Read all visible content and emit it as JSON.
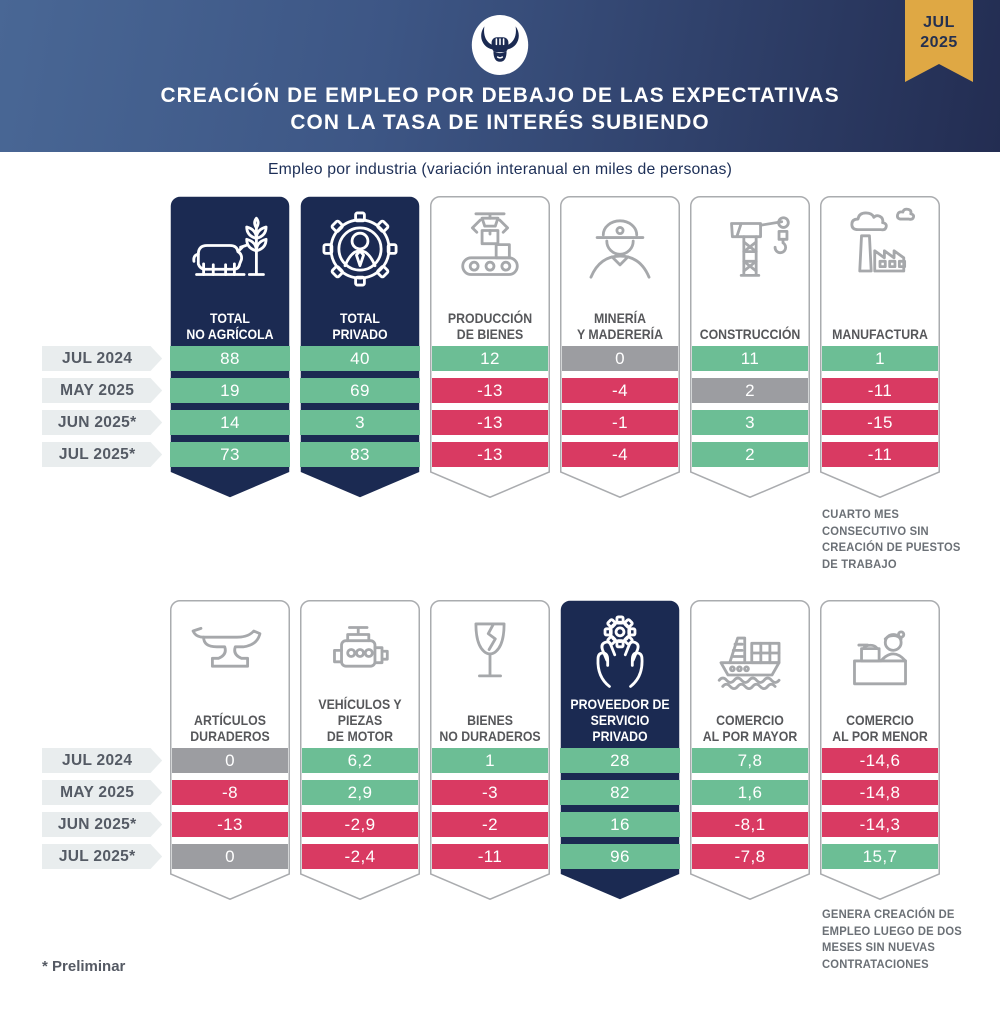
{
  "header": {
    "logo": "bull-horns-logo",
    "badge": {
      "month": "JUL",
      "year": "2025"
    },
    "title_line1": "CREACIÓN DE EMPLEO POR DEBAJO DE LAS EXPECTATIVAS",
    "title_line2": "CON LA TASA DE INTERÉS SUBIENDO"
  },
  "subtitle": "Empleo por industria (variación interanual en miles de personas)",
  "footnote": "* Preliminar",
  "colors": {
    "positive_green": "#6cbe95",
    "negative_red": "#d93a62",
    "neutral_gray": "#9c9da1",
    "navy": "#1b2a52",
    "gold_badge": "#dfa844",
    "header_left": "#496795",
    "header_right": "#232d52"
  },
  "chart_data": {
    "type": "table",
    "title": "CREACIÓN DE EMPLEO POR DEBAJO DE LAS EXPECTATIVAS CON LA TASA DE INTERÉS SUBIENDO",
    "subtitle": "Empleo por industria (variación interanual en miles de personas)",
    "unit": "miles de personas, variación interanual",
    "rows": [
      "JUL 2024",
      "MAY 2025",
      "JUN 2025*",
      "JUL 2025*"
    ],
    "value_color_legend": {
      "g": "positivo (verde)",
      "r": "negativo (rojo)",
      "n": "neutro (gris)"
    },
    "bands": [
      {
        "columns": [
          {
            "label": [
              "TOTAL",
              "NO AGRÍCOLA"
            ],
            "icon": "livestock-wheat-icon",
            "style": "navy",
            "values": [
              "88",
              "19",
              "14",
              "73"
            ],
            "value_colors": [
              "g",
              "g",
              "g",
              "g"
            ]
          },
          {
            "label": [
              "TOTAL",
              "PRIVADO"
            ],
            "icon": "gear-person-icon",
            "style": "navy",
            "values": [
              "40",
              "69",
              "3",
              "83"
            ],
            "value_colors": [
              "g",
              "g",
              "g",
              "g"
            ]
          },
          {
            "label": [
              "PRODUCCIÓN",
              "DE BIENES"
            ],
            "icon": "conveyor-claw-icon",
            "style": "light",
            "values": [
              "12",
              "-13",
              "-13",
              "-13"
            ],
            "value_colors": [
              "g",
              "r",
              "r",
              "r"
            ]
          },
          {
            "label": [
              "MINERÍA",
              "Y MADERERÍA"
            ],
            "icon": "miner-icon",
            "style": "light",
            "values": [
              "0",
              "-4",
              "-1",
              "-4"
            ],
            "value_colors": [
              "n",
              "r",
              "r",
              "r"
            ]
          },
          {
            "label": [
              "CONSTRUCCIÓN"
            ],
            "icon": "crane-icon",
            "style": "light",
            "values": [
              "11",
              "2",
              "3",
              "2"
            ],
            "value_colors": [
              "g",
              "n",
              "g",
              "g"
            ]
          },
          {
            "label": [
              "MANUFACTURA"
            ],
            "icon": "factory-icon",
            "style": "light",
            "values": [
              "1",
              "-11",
              "-15",
              "-11"
            ],
            "value_colors": [
              "g",
              "r",
              "r",
              "r"
            ],
            "note": "CUARTO MES\nCONSECUTIVO SIN\nCREACIÓN DE PUESTOS\nDE  TRABAJO"
          }
        ]
      },
      {
        "columns": [
          {
            "label": [
              "ARTÍCULOS",
              "DURADEROS"
            ],
            "icon": "anvil-icon",
            "style": "light",
            "values": [
              "0",
              "-8",
              "-13",
              "0"
            ],
            "value_colors": [
              "n",
              "r",
              "r",
              "n"
            ]
          },
          {
            "label": [
              "VEHÍCULOS Y PIEZAS",
              "DE MOTOR"
            ],
            "icon": "engine-icon",
            "style": "light",
            "values": [
              "6,2",
              "2,9",
              "-2,9",
              "-2,4"
            ],
            "value_colors": [
              "g",
              "g",
              "r",
              "r"
            ]
          },
          {
            "label": [
              "BIENES",
              "NO DURADEROS"
            ],
            "icon": "broken-glass-icon",
            "style": "light",
            "values": [
              "1",
              "-3",
              "-2",
              "-11"
            ],
            "value_colors": [
              "g",
              "r",
              "r",
              "r"
            ]
          },
          {
            "label": [
              "PROVEEDOR DE",
              "SERVICIO PRIVADO"
            ],
            "icon": "hands-gear-icon",
            "style": "navy",
            "values": [
              "28",
              "82",
              "16",
              "96"
            ],
            "value_colors": [
              "g",
              "g",
              "g",
              "g"
            ]
          },
          {
            "label": [
              "COMERCIO",
              "AL POR MAYOR"
            ],
            "icon": "cargo-ship-icon",
            "style": "light",
            "values": [
              "7,8",
              "1,6",
              "-8,1",
              "-7,8"
            ],
            "value_colors": [
              "g",
              "g",
              "r",
              "r"
            ]
          },
          {
            "label": [
              "COMERCIO",
              "AL POR MENOR"
            ],
            "icon": "cashier-icon",
            "style": "light",
            "values": [
              "-14,6",
              "-14,8",
              "-14,3",
              "15,7"
            ],
            "value_colors": [
              "r",
              "r",
              "r",
              "g"
            ],
            "note": "GENERA CREACIÓN DE\nEMPLEO LUEGO DE DOS\nMESES SIN NUEVAS\nCONTRATACIONES"
          }
        ]
      }
    ]
  }
}
